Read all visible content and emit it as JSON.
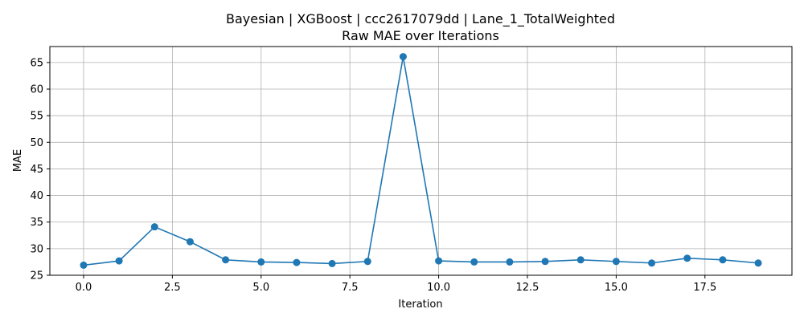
{
  "chart_data": {
    "type": "line",
    "title": "Bayesian | XGBoost | ccc2617079dd | Lane_1_TotalWeighted",
    "subtitle": "Raw MAE over Iterations",
    "xlabel": "Iteration",
    "ylabel": "MAE",
    "xlim": [
      -0.95,
      19.95
    ],
    "ylim": [
      25,
      68
    ],
    "xticks": [
      0.0,
      2.5,
      5.0,
      7.5,
      10.0,
      12.5,
      15.0,
      17.5
    ],
    "xtick_labels": [
      "0.0",
      "2.5",
      "5.0",
      "7.5",
      "10.0",
      "12.5",
      "15.0",
      "17.5"
    ],
    "yticks": [
      25,
      30,
      35,
      40,
      45,
      50,
      55,
      60,
      65
    ],
    "ytick_labels": [
      "25",
      "30",
      "35",
      "40",
      "45",
      "50",
      "55",
      "60",
      "65"
    ],
    "grid": true,
    "color": "#1f77b4",
    "x": [
      0,
      1,
      2,
      3,
      4,
      5,
      6,
      7,
      8,
      9,
      10,
      11,
      12,
      13,
      14,
      15,
      16,
      17,
      18,
      19
    ],
    "values": [
      26.9,
      27.7,
      34.1,
      31.3,
      27.9,
      27.5,
      27.4,
      27.2,
      27.6,
      66.1,
      27.7,
      27.5,
      27.5,
      27.6,
      27.9,
      27.6,
      27.3,
      28.2,
      27.9,
      27.3
    ]
  }
}
